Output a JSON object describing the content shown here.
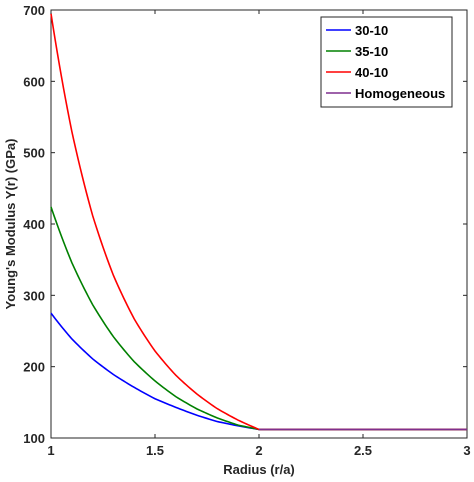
{
  "chart_data": {
    "type": "line",
    "xlabel": "Radius (r/a)",
    "ylabel": "Young's Modulus Y(r) (GPa)",
    "xlim": [
      1,
      3
    ],
    "ylim": [
      100,
      700
    ],
    "xticks": [
      1,
      1.5,
      2,
      2.5,
      3
    ],
    "yticks": [
      100,
      200,
      300,
      400,
      500,
      600,
      700
    ],
    "xtick_labels": [
      "1",
      "1.5",
      "2",
      "2.5",
      "3"
    ],
    "ytick_labels": [
      "100",
      "200",
      "300",
      "400",
      "500",
      "600",
      "700"
    ],
    "grid": false,
    "legend_position": "top-right",
    "series": [
      {
        "name": "30-10",
        "color": "#0000ff",
        "x": [
          1.0,
          1.1,
          1.2,
          1.3,
          1.4,
          1.5,
          1.6,
          1.7,
          1.8,
          1.9,
          2.0,
          2.5,
          3.0
        ],
        "y": [
          275,
          239,
          211,
          189,
          171,
          155,
          143,
          132,
          123,
          117,
          112,
          112,
          112
        ]
      },
      {
        "name": "35-10",
        "color": "#008000",
        "x": [
          1.0,
          1.1,
          1.2,
          1.3,
          1.4,
          1.5,
          1.6,
          1.7,
          1.8,
          1.9,
          2.0,
          2.5,
          3.0
        ],
        "y": [
          424,
          346,
          287,
          242,
          207,
          180,
          158,
          141,
          128,
          118,
          112,
          112,
          112
        ]
      },
      {
        "name": "40-10",
        "color": "#ff0000",
        "x": [
          1.0,
          1.1,
          1.2,
          1.3,
          1.4,
          1.5,
          1.6,
          1.7,
          1.8,
          1.9,
          2.0,
          2.5,
          3.0
        ],
        "y": [
          695,
          530,
          412,
          328,
          267,
          222,
          188,
          162,
          141,
          125,
          112,
          112,
          112
        ]
      },
      {
        "name": "Homogeneous",
        "color": "#7e2f8e",
        "x": [
          1.0,
          3.0
        ],
        "y": [
          null,
          null
        ],
        "segment_x": [
          2.0,
          3.0
        ],
        "segment_y": [
          112,
          112
        ]
      }
    ]
  }
}
